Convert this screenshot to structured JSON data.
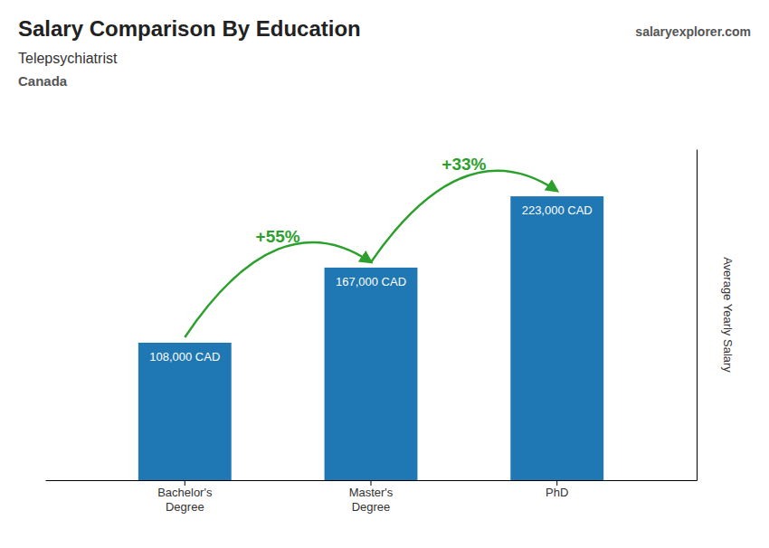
{
  "chart_data": {
    "type": "bar",
    "title": "Salary Comparison By Education",
    "subtitle": [
      "Telepsychiatrist",
      "Canada"
    ],
    "source": "salaryexplorer.com",
    "categories": [
      "Bachelor's\nDegree",
      "Master's\nDegree",
      "PhD"
    ],
    "values": [
      108000,
      167000,
      223000
    ],
    "value_labels": [
      "108,000 CAD",
      "167,000 CAD",
      "223,000 CAD"
    ],
    "data_labels": true,
    "annotations": [
      "+55%",
      "+33%"
    ],
    "ylabel": "Average Yearly Salary",
    "ylim": [
      0,
      260000
    ],
    "grid": false,
    "tick_labels": "x"
  }
}
